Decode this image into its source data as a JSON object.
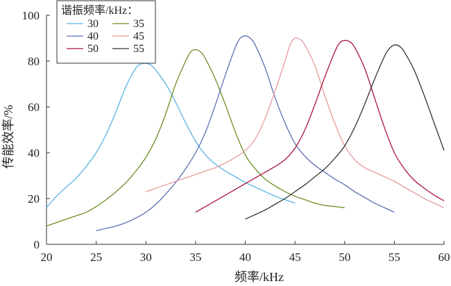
{
  "chart_data": {
    "type": "line",
    "xlabel": "频率/kHz",
    "ylabel": "传能效率/%",
    "xlim": [
      20,
      60
    ],
    "ylim": [
      0,
      100
    ],
    "xticks": [
      20,
      25,
      30,
      35,
      40,
      45,
      50,
      55,
      60
    ],
    "yticks": [
      0,
      20,
      40,
      60,
      80,
      100
    ],
    "grid": false,
    "legend": {
      "title": "谐振频率/kHz：",
      "placement": "top-left",
      "columns": 2
    },
    "series": [
      {
        "name": "30",
        "color": "#5ab4e6",
        "x": [
          20,
          21,
          22,
          23,
          24,
          25,
          26,
          27,
          28,
          29,
          29.5,
          30,
          30.5,
          31,
          32,
          33,
          34,
          35,
          36,
          37,
          38,
          39,
          40,
          41,
          42,
          43,
          44,
          45
        ],
        "y": [
          16,
          21,
          25,
          29,
          34,
          40,
          48,
          58,
          69,
          77,
          78.7,
          79,
          78.3,
          76,
          70,
          62,
          53,
          45,
          39,
          35,
          32,
          29.5,
          27,
          25,
          23,
          21,
          19.5,
          18
        ]
      },
      {
        "name": "35",
        "color": "#6b8e23",
        "x": [
          20,
          21,
          22,
          23,
          24,
          25,
          26,
          27,
          28,
          29,
          30,
          31,
          32,
          33,
          34,
          34.5,
          35,
          35.5,
          36,
          37,
          38,
          39,
          40,
          41,
          42,
          43,
          44,
          45,
          46,
          47,
          48,
          49,
          50
        ],
        "y": [
          8,
          9.5,
          11,
          12.5,
          14,
          16.5,
          19.5,
          23,
          27,
          32,
          38,
          46,
          57,
          70,
          80,
          84,
          85,
          84,
          81,
          72,
          61,
          49,
          39,
          33,
          28.5,
          25.5,
          23,
          21,
          19.5,
          18,
          17,
          16.5,
          16
        ]
      },
      {
        "name": "40",
        "color": "#5b6eb0",
        "x": [
          25,
          26,
          27,
          28,
          29,
          30,
          31,
          32,
          33,
          34,
          35,
          36,
          37,
          38,
          39,
          39.5,
          40,
          40.5,
          41,
          42,
          43,
          44,
          45,
          46,
          47,
          48,
          49,
          50,
          51,
          52,
          53,
          54,
          55
        ],
        "y": [
          6,
          7,
          8,
          9.5,
          11.5,
          14,
          17.5,
          22,
          27,
          33,
          40,
          49,
          61,
          74,
          86,
          90,
          91,
          90,
          87,
          77,
          64,
          53,
          44,
          38.5,
          34.5,
          31.5,
          28.5,
          26,
          23,
          20.5,
          18,
          16,
          14
        ]
      },
      {
        "name": "45",
        "color": "#e89a9a",
        "x": [
          30,
          31,
          32,
          33,
          34,
          35,
          36,
          37,
          38,
          39,
          40,
          41,
          42,
          43,
          44,
          44.5,
          45,
          45.5,
          46,
          47,
          48,
          49,
          50,
          51,
          52,
          53,
          54,
          55,
          56,
          57,
          58,
          59,
          60
        ],
        "y": [
          23,
          24.5,
          26,
          27.5,
          29,
          30.5,
          32,
          33.5,
          35.5,
          38,
          41,
          46,
          55,
          67,
          80,
          87,
          90,
          89.5,
          87,
          78,
          65,
          53,
          43,
          37,
          33.5,
          31.5,
          29.5,
          27.5,
          25,
          22.5,
          20,
          18,
          16
        ]
      },
      {
        "name": "50",
        "color": "#a8123e",
        "x": [
          35,
          36,
          37,
          38,
          39,
          40,
          41,
          42,
          43,
          44,
          45,
          46,
          47,
          48,
          49,
          49.5,
          50,
          50.5,
          51,
          52,
          53,
          54,
          55,
          56,
          57,
          58,
          59,
          60
        ],
        "y": [
          14,
          16.5,
          19,
          21.5,
          24,
          26.5,
          29,
          31.5,
          34,
          37,
          42,
          50,
          61,
          73,
          84,
          88,
          89,
          88.5,
          86,
          77,
          64,
          51,
          40,
          33,
          28,
          24.5,
          21.5,
          19
        ]
      },
      {
        "name": "55",
        "color": "#333333",
        "x": [
          40,
          41,
          42,
          43,
          44,
          45,
          46,
          47,
          48,
          49,
          50,
          51,
          52,
          53,
          54,
          54.5,
          55,
          55.5,
          56,
          57,
          58,
          59,
          60
        ],
        "y": [
          11,
          13,
          15,
          17.5,
          20,
          23,
          26,
          29.5,
          33,
          37.5,
          43,
          51,
          61,
          72,
          82,
          85.5,
          87,
          86.5,
          84,
          76,
          65,
          53,
          41
        ]
      }
    ]
  }
}
